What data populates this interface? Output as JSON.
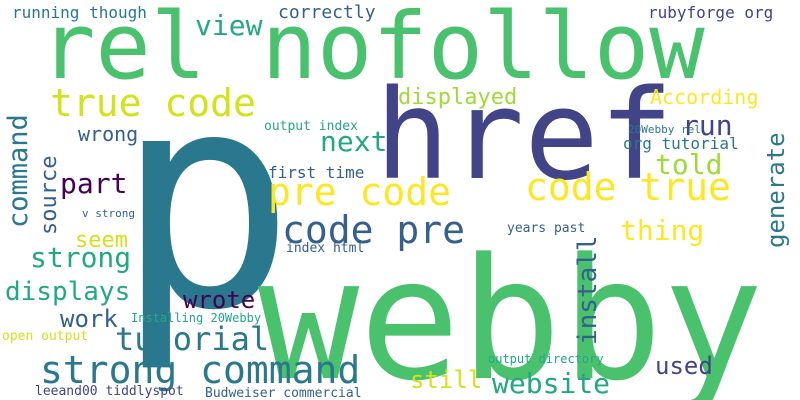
{
  "words": [
    {
      "text": "p",
      "color": "#2a788e",
      "vertical": false
    },
    {
      "text": "webby",
      "color": "#4ac16d",
      "vertical": false
    },
    {
      "text": "href",
      "color": "#414487",
      "vertical": false
    },
    {
      "text": "rel nofollow",
      "color": "#4ac16d",
      "vertical": false
    },
    {
      "text": "strong command",
      "color": "#2a788e",
      "vertical": false
    },
    {
      "text": "true code",
      "color": "#d2e21b",
      "vertical": false
    },
    {
      "text": "pre code",
      "color": "#fde725",
      "vertical": false
    },
    {
      "text": "code true",
      "color": "#fde725",
      "vertical": false
    },
    {
      "text": "code pre",
      "color": "#355f8d",
      "vertical": false
    },
    {
      "text": "tutorial",
      "color": "#2a788e",
      "vertical": false
    },
    {
      "text": "website",
      "color": "#22a884",
      "vertical": false
    },
    {
      "text": "strong",
      "color": "#22a884",
      "vertical": false
    },
    {
      "text": "displays",
      "color": "#22a884",
      "vertical": false
    },
    {
      "text": "part",
      "color": "#440154",
      "vertical": false
    },
    {
      "text": "next",
      "color": "#22a884",
      "vertical": false
    },
    {
      "text": "told",
      "color": "#a0da39",
      "vertical": false
    },
    {
      "text": "run",
      "color": "#414487",
      "vertical": false
    },
    {
      "text": "thing",
      "color": "#fde725",
      "vertical": false
    },
    {
      "text": "view",
      "color": "#22a884",
      "vertical": false
    },
    {
      "text": "work",
      "color": "#355f8d",
      "vertical": false
    },
    {
      "text": "wrote",
      "color": "#440154",
      "vertical": false
    },
    {
      "text": "used",
      "color": "#414487",
      "vertical": false
    },
    {
      "text": "still",
      "color": "#d2e21b",
      "vertical": false
    },
    {
      "text": "seem",
      "color": "#d2e21b",
      "vertical": false
    },
    {
      "text": "displayed",
      "color": "#a0da39",
      "vertical": false
    },
    {
      "text": "According",
      "color": "#fde725",
      "vertical": false
    },
    {
      "text": "wrong",
      "color": "#355f8d",
      "vertical": false
    },
    {
      "text": "correctly",
      "color": "#355f8d",
      "vertical": false
    },
    {
      "text": "running though",
      "color": "#2a788e",
      "vertical": false
    },
    {
      "text": "rubyforge org",
      "color": "#414487",
      "vertical": false
    },
    {
      "text": "first time",
      "color": "#355f8d",
      "vertical": false
    },
    {
      "text": "org tutorial",
      "color": "#2a788e",
      "vertical": false
    },
    {
      "text": "output index",
      "color": "#22a884",
      "vertical": false
    },
    {
      "text": "20Webby rel",
      "color": "#2a788e",
      "vertical": false
    },
    {
      "text": "index html",
      "color": "#355f8d",
      "vertical": false
    },
    {
      "text": "years past",
      "color": "#355f8d",
      "vertical": false
    },
    {
      "text": "v strong",
      "color": "#355f8d",
      "vertical": false
    },
    {
      "text": "Installing 20Webby",
      "color": "#22a884",
      "vertical": false
    },
    {
      "text": "open output",
      "color": "#d2e21b",
      "vertical": false
    },
    {
      "text": "output directory",
      "color": "#22a884",
      "vertical": false
    },
    {
      "text": "leeand00 tiddlyspot",
      "color": "#414487",
      "vertical": false
    },
    {
      "text": "Budweiser commercial",
      "color": "#355f8d",
      "vertical": false
    },
    {
      "text": "command",
      "color": "#2a788e",
      "vertical": true
    },
    {
      "text": "source",
      "color": "#355f8d",
      "vertical": true
    },
    {
      "text": "generate",
      "color": "#2a788e",
      "vertical": true
    },
    {
      "text": "install",
      "color": "#355f8d",
      "vertical": true
    }
  ]
}
